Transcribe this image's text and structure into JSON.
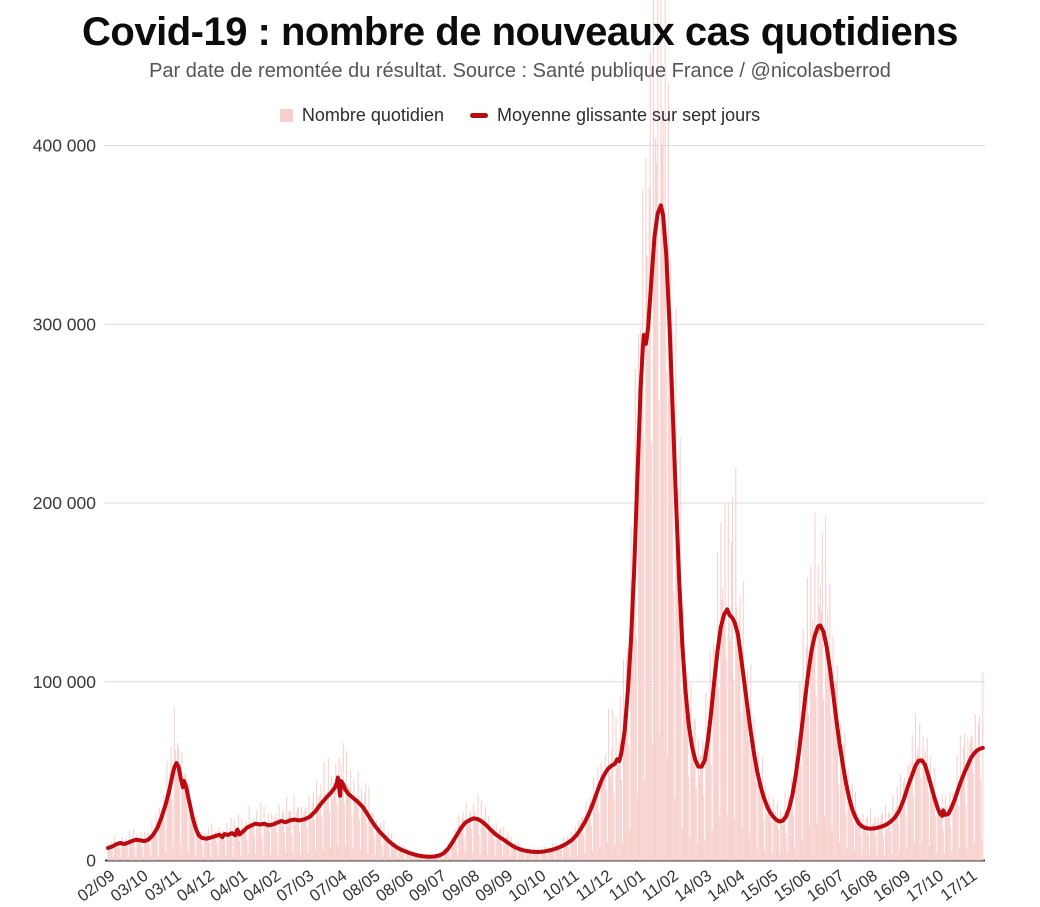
{
  "title": "Covid-19 : nombre de nouveaux cas quotidiens",
  "subtitle": "Par date de remontée du résultat. Source : Santé publique France / @nicolasberrod",
  "legend": {
    "items": [
      {
        "label": "Nombre quotidien",
        "swatch": "square",
        "color": "#f7d0cd"
      },
      {
        "label": "Moyenne glissante sur sept jours",
        "swatch": "dash",
        "color": "#b50d12"
      }
    ]
  },
  "chart_data": {
    "type": "bar+line",
    "title": "Covid-19 : nombre de nouveaux cas quotidiens",
    "xlabel": "",
    "ylabel": "",
    "ylim": [
      0,
      400000
    ],
    "grid": "horizontal",
    "legend_position": "top-center",
    "y_ticks": [
      {
        "value": 0,
        "label": "0"
      },
      {
        "value": 100000,
        "label": "100 000"
      },
      {
        "value": 200000,
        "label": "200 000"
      },
      {
        "value": 300000,
        "label": "300 000"
      },
      {
        "value": 400000,
        "label": "400 000"
      }
    ],
    "x_tick_labels": [
      "02/09",
      "03/10",
      "03/11",
      "04/12",
      "04/01",
      "04/02",
      "07/03",
      "07/04",
      "08/05",
      "08/06",
      "09/07",
      "09/08",
      "09/09",
      "10/10",
      "10/11",
      "11/12",
      "11/01",
      "11/02",
      "14/03",
      "14/04",
      "15/05",
      "15/06",
      "16/07",
      "16/08",
      "16/09",
      "17/10",
      "17/11"
    ],
    "x_tick_day_step": 31,
    "days_total": 818,
    "series": [
      {
        "name": "Nombre quotidien",
        "type": "bar",
        "color": "#f7d2cf"
      },
      {
        "name": "Moyenne glissante sur sept jours",
        "type": "line",
        "color": "#bb0a10",
        "width": 4
      }
    ],
    "moving_average_points": [
      [
        0,
        7000
      ],
      [
        4,
        7800
      ],
      [
        8,
        9200
      ],
      [
        12,
        9800
      ],
      [
        15,
        9200
      ],
      [
        18,
        9800
      ],
      [
        22,
        10800
      ],
      [
        26,
        11600
      ],
      [
        30,
        11300
      ],
      [
        34,
        10800
      ],
      [
        38,
        11800
      ],
      [
        42,
        14200
      ],
      [
        46,
        18000
      ],
      [
        50,
        24000
      ],
      [
        54,
        31500
      ],
      [
        57,
        38500
      ],
      [
        60,
        47000
      ],
      [
        62,
        52000
      ],
      [
        64,
        54500
      ],
      [
        66,
        52500
      ],
      [
        68,
        46000
      ],
      [
        70,
        41000
      ],
      [
        71,
        44500
      ],
      [
        73,
        41500
      ],
      [
        75,
        35500
      ],
      [
        77,
        30000
      ],
      [
        79,
        24500
      ],
      [
        81,
        20000
      ],
      [
        83,
        16500
      ],
      [
        85,
        14000
      ],
      [
        88,
        12600
      ],
      [
        92,
        12200
      ],
      [
        96,
        12800
      ],
      [
        100,
        13600
      ],
      [
        104,
        14400
      ],
      [
        107,
        13100
      ],
      [
        109,
        14800
      ],
      [
        112,
        14300
      ],
      [
        116,
        15300
      ],
      [
        119,
        14100
      ],
      [
        121,
        17300
      ],
      [
        123,
        14600
      ],
      [
        126,
        16100
      ],
      [
        130,
        18400
      ],
      [
        134,
        19600
      ],
      [
        138,
        20600
      ],
      [
        142,
        20100
      ],
      [
        146,
        20600
      ],
      [
        150,
        19700
      ],
      [
        154,
        20100
      ],
      [
        158,
        21100
      ],
      [
        162,
        22100
      ],
      [
        166,
        21400
      ],
      [
        170,
        22400
      ],
      [
        174,
        22900
      ],
      [
        179,
        22400
      ],
      [
        184,
        23100
      ],
      [
        189,
        24600
      ],
      [
        194,
        27600
      ],
      [
        199,
        31600
      ],
      [
        204,
        35100
      ],
      [
        208,
        37600
      ],
      [
        212,
        40600
      ],
      [
        214,
        43600
      ],
      [
        215,
        46400
      ],
      [
        217,
        36200
      ],
      [
        218,
        44400
      ],
      [
        220,
        42600
      ],
      [
        222,
        39600
      ],
      [
        225,
        37100
      ],
      [
        228,
        35600
      ],
      [
        231,
        34100
      ],
      [
        234,
        32600
      ],
      [
        238,
        30100
      ],
      [
        242,
        26600
      ],
      [
        246,
        22600
      ],
      [
        250,
        19100
      ],
      [
        254,
        16100
      ],
      [
        258,
        13600
      ],
      [
        262,
        11100
      ],
      [
        266,
        9100
      ],
      [
        270,
        7400
      ],
      [
        274,
        6100
      ],
      [
        278,
        5100
      ],
      [
        282,
        4200
      ],
      [
        286,
        3400
      ],
      [
        290,
        2800
      ],
      [
        294,
        2400
      ],
      [
        298,
        2150
      ],
      [
        302,
        2100
      ],
      [
        306,
        2300
      ],
      [
        310,
        2900
      ],
      [
        314,
        4100
      ],
      [
        318,
        6600
      ],
      [
        322,
        10100
      ],
      [
        326,
        14100
      ],
      [
        330,
        18100
      ],
      [
        334,
        21100
      ],
      [
        338,
        22600
      ],
      [
        342,
        23600
      ],
      [
        346,
        23100
      ],
      [
        350,
        21600
      ],
      [
        354,
        19600
      ],
      [
        358,
        17100
      ],
      [
        362,
        14900
      ],
      [
        366,
        13100
      ],
      [
        370,
        11600
      ],
      [
        374,
        9900
      ],
      [
        378,
        8300
      ],
      [
        382,
        7000
      ],
      [
        386,
        6100
      ],
      [
        390,
        5500
      ],
      [
        394,
        5100
      ],
      [
        398,
        4850
      ],
      [
        402,
        4750
      ],
      [
        406,
        4900
      ],
      [
        410,
        5300
      ],
      [
        414,
        5800
      ],
      [
        418,
        6500
      ],
      [
        422,
        7400
      ],
      [
        426,
        8500
      ],
      [
        430,
        9900
      ],
      [
        434,
        11600
      ],
      [
        438,
        14100
      ],
      [
        442,
        17600
      ],
      [
        446,
        21600
      ],
      [
        450,
        26600
      ],
      [
        453,
        31100
      ],
      [
        456,
        36100
      ],
      [
        459,
        41100
      ],
      [
        462,
        45600
      ],
      [
        465,
        49100
      ],
      [
        468,
        51600
      ],
      [
        471,
        53100
      ],
      [
        474,
        54100
      ],
      [
        476,
        56600
      ],
      [
        478,
        55600
      ],
      [
        480,
        60100
      ],
      [
        483,
        72000
      ],
      [
        486,
        94000
      ],
      [
        489,
        123000
      ],
      [
        492,
        163000
      ],
      [
        495,
        214000
      ],
      [
        498,
        264000
      ],
      [
        500,
        286000
      ],
      [
        501,
        294000
      ],
      [
        503,
        289000
      ],
      [
        505,
        298000
      ],
      [
        508,
        324000
      ],
      [
        511,
        349000
      ],
      [
        514,
        362000
      ],
      [
        517,
        366500
      ],
      [
        519,
        361000
      ],
      [
        522,
        339000
      ],
      [
        525,
        300000
      ],
      [
        528,
        252000
      ],
      [
        531,
        203000
      ],
      [
        534,
        158000
      ],
      [
        537,
        121000
      ],
      [
        540,
        94500
      ],
      [
        543,
        76000
      ],
      [
        546,
        64000
      ],
      [
        549,
        56500
      ],
      [
        552,
        52500
      ],
      [
        555,
        52500
      ],
      [
        558,
        56000
      ],
      [
        561,
        67500
      ],
      [
        564,
        83000
      ],
      [
        567,
        101000
      ],
      [
        570,
        117500
      ],
      [
        573,
        130500
      ],
      [
        576,
        137500
      ],
      [
        579,
        140500
      ],
      [
        581,
        137500
      ],
      [
        584,
        135500
      ],
      [
        586,
        133000
      ],
      [
        589,
        126500
      ],
      [
        592,
        113500
      ],
      [
        595,
        99500
      ],
      [
        598,
        85500
      ],
      [
        601,
        72000
      ],
      [
        604,
        60000
      ],
      [
        607,
        50000
      ],
      [
        610,
        42000
      ],
      [
        613,
        35600
      ],
      [
        616,
        30700
      ],
      [
        619,
        27000
      ],
      [
        622,
        24500
      ],
      [
        625,
        22700
      ],
      [
        628,
        21800
      ],
      [
        631,
        22300
      ],
      [
        634,
        24600
      ],
      [
        637,
        29500
      ],
      [
        640,
        36800
      ],
      [
        643,
        47500
      ],
      [
        646,
        60500
      ],
      [
        649,
        75500
      ],
      [
        652,
        91500
      ],
      [
        655,
        106000
      ],
      [
        658,
        118000
      ],
      [
        661,
        126000
      ],
      [
        664,
        131000
      ],
      [
        666,
        131500
      ],
      [
        669,
        128000
      ],
      [
        672,
        119500
      ],
      [
        675,
        107500
      ],
      [
        678,
        93500
      ],
      [
        681,
        79000
      ],
      [
        684,
        65500
      ],
      [
        687,
        54000
      ],
      [
        690,
        43500
      ],
      [
        693,
        35000
      ],
      [
        696,
        28500
      ],
      [
        699,
        24000
      ],
      [
        702,
        20800
      ],
      [
        705,
        19100
      ],
      [
        708,
        18200
      ],
      [
        712,
        17800
      ],
      [
        716,
        17900
      ],
      [
        720,
        18400
      ],
      [
        724,
        19100
      ],
      [
        728,
        20200
      ],
      [
        732,
        21800
      ],
      [
        736,
        24200
      ],
      [
        740,
        28000
      ],
      [
        744,
        34000
      ],
      [
        748,
        41500
      ],
      [
        752,
        48000
      ],
      [
        755,
        53000
      ],
      [
        758,
        55800
      ],
      [
        761,
        56000
      ],
      [
        764,
        53500
      ],
      [
        767,
        47500
      ],
      [
        770,
        41000
      ],
      [
        773,
        34500
      ],
      [
        776,
        29000
      ],
      [
        778,
        26200
      ],
      [
        780,
        25000
      ],
      [
        781,
        28000
      ],
      [
        783,
        25500
      ],
      [
        786,
        26200
      ],
      [
        789,
        30000
      ],
      [
        792,
        34500
      ],
      [
        795,
        40000
      ],
      [
        798,
        45000
      ],
      [
        801,
        49500
      ],
      [
        804,
        53500
      ],
      [
        807,
        57500
      ],
      [
        810,
        60000
      ],
      [
        813,
        61800
      ],
      [
        816,
        62600
      ],
      [
        818,
        63000
      ]
    ],
    "daily_bar_model": {
      "weekday_multipliers": [
        1.05,
        1.1,
        1.2,
        1.45,
        0.75,
        0.18,
        1.5
      ],
      "jitter_base": 0.8,
      "jitter_range": 0.32,
      "min_factor": 0.08,
      "note": "daily bars fluctuate around the 7-day average with weekly reporting pattern; tallest January 2022 bars exceed the 400 000 axis and overflow above the plot"
    }
  }
}
